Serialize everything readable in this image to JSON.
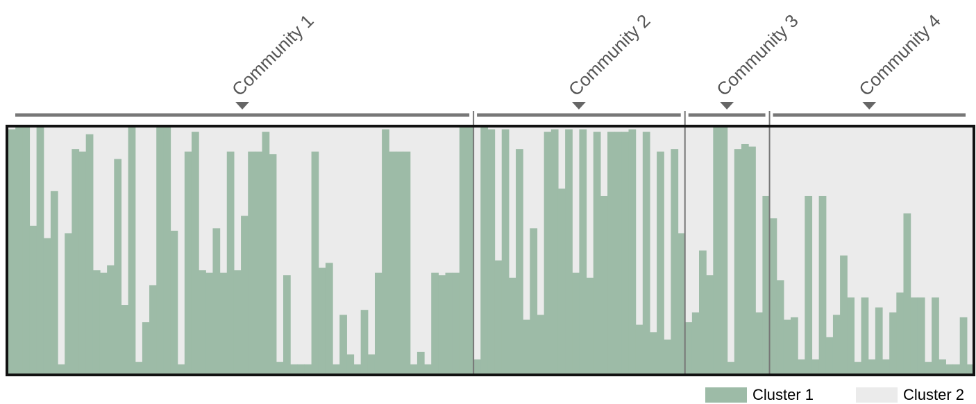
{
  "chart_data": {
    "type": "bar",
    "stacked": true,
    "ylim": [
      0,
      1
    ],
    "colors": {
      "cluster1": "#9dbba7",
      "cluster2": "#ebebeb",
      "border": "#111111",
      "separator": "#777777",
      "bracket": "#777777"
    },
    "series": [
      {
        "name": "Cluster 1"
      },
      {
        "name": "Cluster 2"
      }
    ],
    "communities": [
      {
        "name": "Community 1",
        "cluster1": [
          0.99,
          1.0,
          1.01,
          0.6,
          1.01,
          0.55,
          0.74,
          0.04,
          0.57,
          0.91,
          0.9,
          0.97,
          0.42,
          0.41,
          0.44,
          0.87,
          0.28,
          1.0,
          0.05,
          0.21,
          0.36,
          1.0,
          1.01,
          0.58,
          0.04,
          0.9,
          0.98,
          0.42,
          0.41,
          0.59,
          0.41,
          0.9,
          0.42,
          0.64,
          0.9,
          0.9,
          0.98,
          0.89,
          0.05,
          0.4,
          0.04,
          0.04,
          0.04,
          0.9,
          0.43,
          0.45,
          0.04,
          0.24,
          0.08,
          0.04,
          0.26,
          0.08,
          0.41,
          0.99,
          0.9,
          0.9,
          0.9,
          0.04,
          0.09,
          0.04,
          0.41,
          0.4,
          0.41,
          0.41,
          1.0,
          1.01
        ]
      },
      {
        "name": "Community 2",
        "cluster1": [
          0.06,
          1.0,
          0.99,
          0.46,
          0.99,
          0.39,
          0.91,
          0.22,
          0.59,
          0.24,
          0.98,
          0.99,
          0.75,
          0.99,
          0.41,
          0.99,
          0.39,
          0.98,
          0.72,
          0.98,
          0.98,
          0.98,
          0.99,
          0.2,
          0.98,
          0.17,
          0.9,
          0.14,
          0.91,
          0.57
        ]
      },
      {
        "name": "Community 3",
        "cluster1": [
          0.21,
          0.25,
          0.5,
          0.4,
          1.0,
          1.0,
          0.05,
          0.91,
          0.93,
          0.92,
          0.25,
          0.72
        ]
      },
      {
        "name": "Community 4",
        "cluster1": [
          0.63,
          0.38,
          0.22,
          0.23,
          0.06,
          0.72,
          0.06,
          0.72,
          0.15,
          0.24,
          0.48,
          0.31,
          0.05,
          0.31,
          0.06,
          0.27,
          0.06,
          0.25,
          0.33,
          0.65,
          0.31,
          0.31,
          0.05,
          0.31,
          0.06,
          0.04,
          0.04,
          0.23,
          0.04
        ]
      }
    ]
  }
}
